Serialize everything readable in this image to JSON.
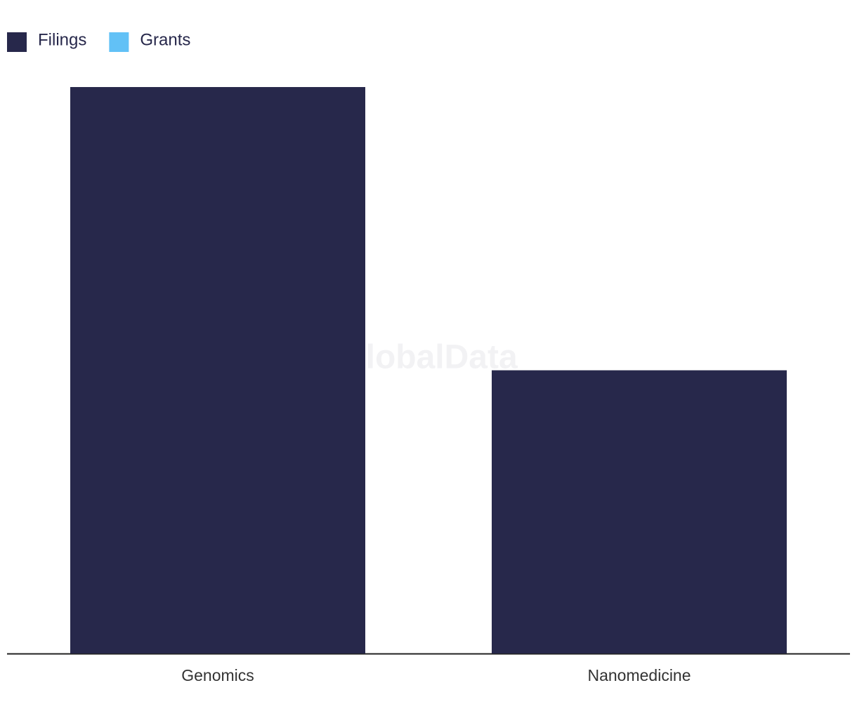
{
  "chart_data": {
    "type": "bar",
    "watermark": "GlobalData",
    "categories": [
      "Genomics",
      "Nanomedicine"
    ],
    "series": [
      {
        "name": "Filings",
        "color": "#27284b",
        "values": [
          2,
          1
        ]
      },
      {
        "name": "Grants",
        "color": "#62c1f6",
        "values": [
          0,
          0
        ]
      }
    ]
  }
}
